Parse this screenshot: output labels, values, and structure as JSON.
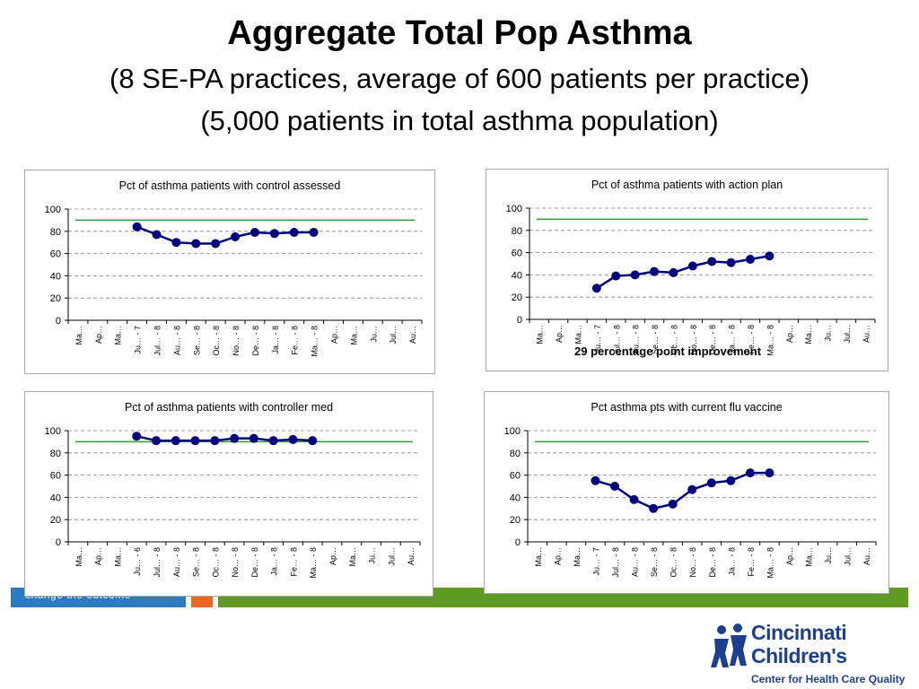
{
  "slide": {
    "title": "Aggregate Total Pop Asthma",
    "subtitle1": "(8 SE-PA practices, average of 600 patients per practice)",
    "subtitle2": "(5,000 patients in total asthma population)",
    "tagline": "change the outcome°",
    "annotation": "29 percentage point improvement",
    "logo": {
      "line1": "Cincinnati",
      "line2": "Children's",
      "line3": "Center for Health Care Quality"
    }
  },
  "colors": {
    "series": "#000080",
    "target": "#339933",
    "bar_blue": "#2a7bbf",
    "bar_orange": "#f26522",
    "bar_green": "#5e9a1f",
    "logo": "#1d3f8f"
  },
  "chart_data": [
    {
      "type": "line",
      "title": "Pct of asthma patients with control assessed",
      "categories": [
        "Ma…",
        "Ap…",
        "Ma…",
        "Ju… - 7",
        "Jul… - 8",
        "Au… - 8",
        "Se… - 8",
        "Oc… - 8",
        "No… - 8",
        "De… - 8",
        "Ja… - 8",
        "Fe… - 8",
        "Ma… - 8",
        "Ap…",
        "Ma…",
        "Ju…",
        "Jul…",
        "Au…"
      ],
      "ylim": [
        0,
        100
      ],
      "yticks": [
        0,
        20,
        40,
        60,
        80,
        100
      ],
      "grid": true,
      "target": 90,
      "values": [
        null,
        null,
        null,
        84,
        77,
        70,
        69,
        69,
        75,
        79,
        78,
        79,
        79,
        null,
        null,
        null,
        null,
        null
      ]
    },
    {
      "type": "line",
      "title": "Pct of asthma patients with action plan",
      "categories": [
        "Ma…",
        "Ap…",
        "Ma…",
        "Ju… - 7",
        "Jul… - 8",
        "Au… - 8",
        "Se… - 8",
        "Oc… - 8",
        "No… - 8",
        "De… - 8",
        "Ja… - 8",
        "Fe… - 8",
        "Ma… - 8",
        "Ap…",
        "Ma…",
        "Ju…",
        "Jul…",
        "Au…"
      ],
      "ylim": [
        0,
        100
      ],
      "yticks": [
        0,
        20,
        40,
        60,
        80,
        100
      ],
      "grid": true,
      "target": 90,
      "values": [
        null,
        null,
        null,
        28,
        39,
        40,
        43,
        42,
        48,
        52,
        51,
        54,
        57,
        null,
        null,
        null,
        null,
        null
      ]
    },
    {
      "type": "line",
      "title": "Pct of asthma patients with controller med",
      "categories": [
        "Ma…",
        "Ap…",
        "Ma…",
        "Ju… - 6",
        "Jul… - 8",
        "Au… - 8",
        "Se… - 8",
        "Oc… - 8",
        "No… - 8",
        "De… - 8",
        "Ja… - 8",
        "Fe… - 8",
        "Ma… - 8",
        "Ap…",
        "Ma…",
        "Ju…",
        "Jul…",
        "Au…"
      ],
      "ylim": [
        0,
        100
      ],
      "yticks": [
        0,
        20,
        40,
        60,
        80,
        100
      ],
      "grid": true,
      "target": 90,
      "values": [
        null,
        null,
        null,
        95,
        91,
        91,
        91,
        91,
        93,
        93,
        91,
        92,
        91,
        null,
        null,
        null,
        null,
        null
      ]
    },
    {
      "type": "line",
      "title": "Pct asthma pts with current flu vaccine",
      "categories": [
        "Ma…",
        "Ap…",
        "Ma…",
        "Ju… - 7",
        "Jul… - 8",
        "Au… - 8",
        "Se… - 8",
        "Oc… - 8",
        "No… - 8",
        "De… - 8",
        "Ja… - 8",
        "Fe… - 8",
        "Ma… - 8",
        "Ap…",
        "Ma…",
        "Ju…",
        "Jul…",
        "Au…"
      ],
      "ylim": [
        0,
        100
      ],
      "yticks": [
        0,
        20,
        40,
        60,
        80,
        100
      ],
      "grid": true,
      "target": 90,
      "values": [
        null,
        null,
        null,
        55,
        50,
        38,
        30,
        34,
        47,
        53,
        55,
        62,
        62,
        null,
        null,
        null,
        null,
        null
      ]
    }
  ]
}
